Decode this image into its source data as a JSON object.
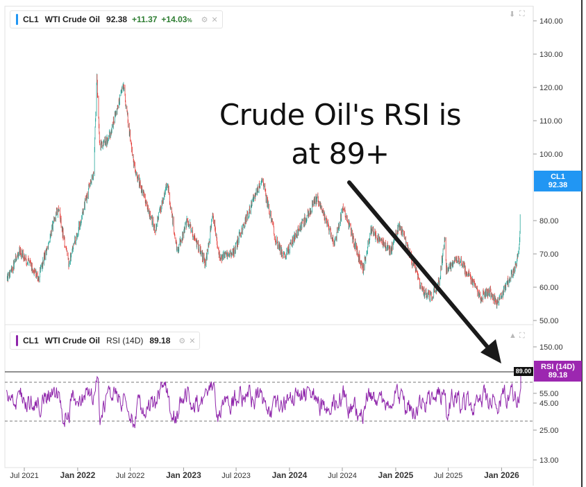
{
  "main_legend": {
    "symbol": "CL1",
    "name": "WTI Crude Oil",
    "value": "92.38",
    "change": "+11.37",
    "change_pct": "+14.03",
    "pct_unit": "%",
    "color": "#2196f3"
  },
  "rsi_legend": {
    "symbol": "CL1",
    "name": "WTI Crude Oil",
    "indicator": "RSI (14D)",
    "value": "89.18",
    "color": "#8e24aa"
  },
  "price_badge": {
    "line1": "CL1",
    "line2": "92.38",
    "color": "#2196f3"
  },
  "rsi_badge": {
    "line1": "RSI (14D)",
    "line2": "89.18",
    "color": "#9c27b0"
  },
  "rsi_callout": "89.00",
  "annotation": {
    "line1": "Crude Oil's RSI is",
    "line2": "at 89+"
  },
  "icons": [
    "download-icon",
    "fullscreen-icon",
    "settings-icon",
    "close-icon",
    "maximize-icon"
  ],
  "chart_data": [
    {
      "type": "candlestick",
      "series_name": "CL1 WTI Crude Oil",
      "y_ticks": [
        "140.00",
        "130.00",
        "120.00",
        "110.00",
        "100.00",
        "80.00",
        "70.00",
        "60.00",
        "50.00"
      ],
      "ylim": [
        48,
        143
      ],
      "up_color": "#26a69a",
      "down_color": "#e53935",
      "anchors": [
        [
          "2021-05-01",
          62
        ],
        [
          "2021-06-15",
          71
        ],
        [
          "2021-08-20",
          63
        ],
        [
          "2021-10-25",
          84
        ],
        [
          "2021-12-01",
          67
        ],
        [
          "2022-01-05",
          78
        ],
        [
          "2022-02-25",
          95
        ],
        [
          "2022-03-08",
          123
        ],
        [
          "2022-03-18",
          103
        ],
        [
          "2022-04-15",
          104
        ],
        [
          "2022-06-08",
          120
        ],
        [
          "2022-07-15",
          96
        ],
        [
          "2022-08-15",
          88
        ],
        [
          "2022-09-26",
          77
        ],
        [
          "2022-11-05",
          92
        ],
        [
          "2022-12-09",
          71
        ],
        [
          "2023-01-15",
          80
        ],
        [
          "2023-03-17",
          67
        ],
        [
          "2023-04-12",
          82
        ],
        [
          "2023-05-04",
          69
        ],
        [
          "2023-06-20",
          70
        ],
        [
          "2023-09-27",
          93
        ],
        [
          "2023-11-15",
          74
        ],
        [
          "2023-12-13",
          69
        ],
        [
          "2024-01-25",
          76
        ],
        [
          "2024-04-05",
          87
        ],
        [
          "2024-06-04",
          73
        ],
        [
          "2024-07-05",
          84
        ],
        [
          "2024-09-10",
          65
        ],
        [
          "2024-10-07",
          77
        ],
        [
          "2024-12-15",
          71
        ],
        [
          "2025-01-15",
          79
        ],
        [
          "2025-03-05",
          66
        ],
        [
          "2025-04-09",
          58
        ],
        [
          "2025-05-05",
          57
        ],
        [
          "2025-06-01",
          62
        ],
        [
          "2025-06-20",
          75
        ],
        [
          "2025-06-24",
          65
        ],
        [
          "2025-08-01",
          69
        ],
        [
          "2025-09-15",
          63
        ],
        [
          "2025-10-20",
          57
        ],
        [
          "2025-11-20",
          59
        ],
        [
          "2025-12-16",
          55
        ],
        [
          "2026-01-25",
          62
        ],
        [
          "2026-02-15",
          66
        ],
        [
          "2026-03-01",
          70
        ],
        [
          "2026-03-05",
          76
        ],
        [
          "2026-03-08",
          92.38
        ]
      ]
    },
    {
      "type": "line",
      "series_name": "RSI (14D)",
      "y_ticks": [
        "150.00",
        "55.00",
        "45.00",
        "25.00",
        "13.00"
      ],
      "reference_levels": [
        89,
        70,
        30
      ],
      "last_value": 89.18,
      "line_color": "#8e24aa",
      "x_ticks": [
        "Jul 2021",
        "Jan 2022",
        "Jul 2022",
        "Jan 2023",
        "Jul 2023",
        "Jan 2024",
        "Jul 2024",
        "Jan 2025",
        "Jul 2025",
        "Jan 2026"
      ],
      "x_tick_dates": [
        "2021-07-01",
        "2022-01-01",
        "2022-07-01",
        "2023-01-01",
        "2023-07-01",
        "2024-01-01",
        "2024-07-01",
        "2025-01-01",
        "2025-07-01",
        "2026-01-01"
      ],
      "x_range": [
        "2021-04-25",
        "2026-04-20"
      ]
    }
  ]
}
